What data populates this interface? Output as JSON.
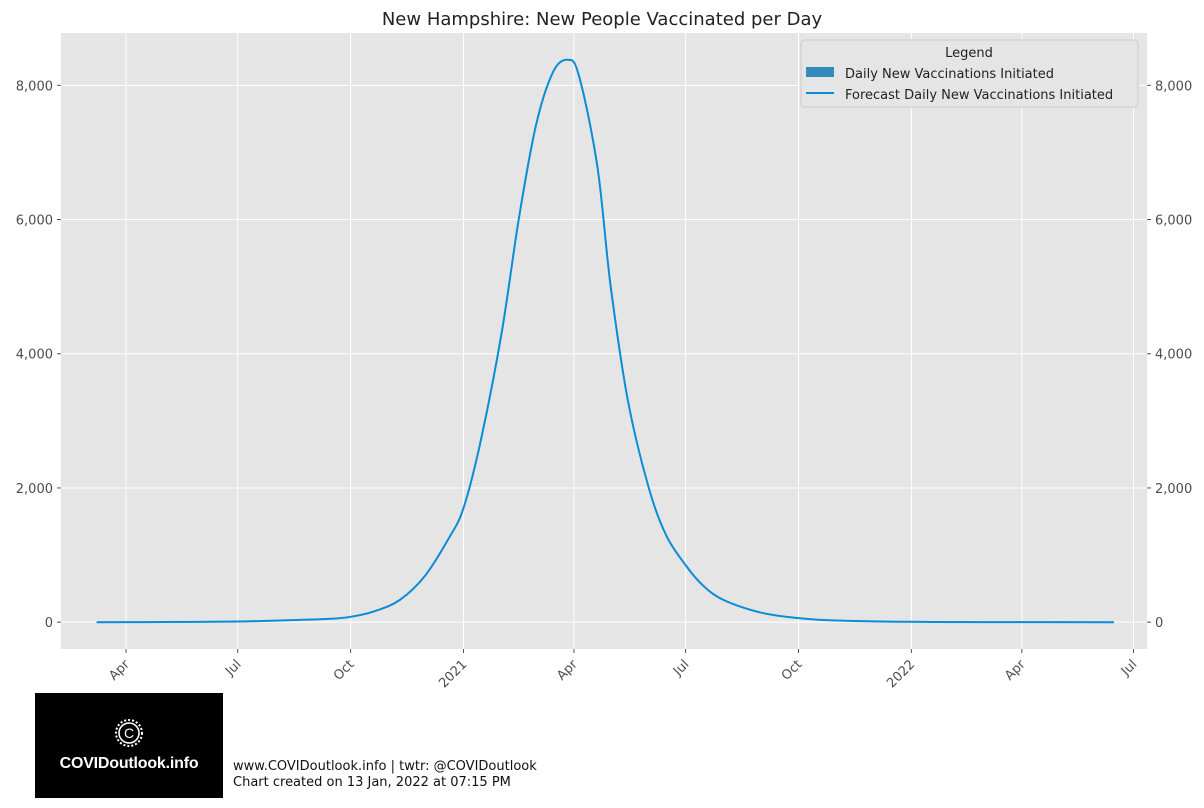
{
  "chart_data": {
    "type": "line",
    "title": "New Hampshire: New People Vaccinated per Day",
    "xlabel": "",
    "ylabel": "",
    "x_ticks": [
      {
        "date": "2020-04-01",
        "label": "Apr"
      },
      {
        "date": "2020-07-01",
        "label": "Jul"
      },
      {
        "date": "2020-10-01",
        "label": "Oct"
      },
      {
        "date": "2021-01-01",
        "label": "2021"
      },
      {
        "date": "2021-04-01",
        "label": "Apr"
      },
      {
        "date": "2021-07-01",
        "label": "Jul"
      },
      {
        "date": "2021-10-01",
        "label": "Oct"
      },
      {
        "date": "2022-01-01",
        "label": "2022"
      },
      {
        "date": "2022-04-01",
        "label": "Apr"
      },
      {
        "date": "2022-07-01",
        "label": "Jul"
      }
    ],
    "y_ticks": [
      0,
      2000,
      4000,
      6000,
      8000
    ],
    "y_tick_labels": [
      "0",
      "2,000",
      "4,000",
      "6,000",
      "8,000"
    ],
    "xlim": [
      "2020-02-08",
      "2022-07-12"
    ],
    "ylim": [
      -400,
      8780
    ],
    "grid": true,
    "legend": {
      "title": "Legend",
      "placement": "top-right",
      "entries": [
        {
          "label": "Daily New Vaccinations Initiated",
          "kind": "bar",
          "color": "#348abd"
        },
        {
          "label": "Forecast Daily New Vaccinations Initiated",
          "kind": "line",
          "color": "#0a8cd6"
        }
      ]
    },
    "series": [
      {
        "name": "Forecast Daily New Vaccinations Initiated",
        "color": "#0a8cd6",
        "points": [
          [
            "2020-03-08",
            0
          ],
          [
            "2020-05-01",
            2
          ],
          [
            "2020-07-01",
            10
          ],
          [
            "2020-08-15",
            30
          ],
          [
            "2020-09-15",
            50
          ],
          [
            "2020-10-01",
            80
          ],
          [
            "2020-10-20",
            160
          ],
          [
            "2020-11-10",
            330
          ],
          [
            "2020-12-01",
            700
          ],
          [
            "2020-12-20",
            1250
          ],
          [
            "2021-01-01",
            1700
          ],
          [
            "2021-01-15",
            2700
          ],
          [
            "2021-02-01",
            4300
          ],
          [
            "2021-02-15",
            6000
          ],
          [
            "2021-03-01",
            7400
          ],
          [
            "2021-03-15",
            8200
          ],
          [
            "2021-03-27",
            8380
          ],
          [
            "2021-04-05",
            8150
          ],
          [
            "2021-04-20",
            6800
          ],
          [
            "2021-05-01",
            5000
          ],
          [
            "2021-05-15",
            3300
          ],
          [
            "2021-06-01",
            2000
          ],
          [
            "2021-06-15",
            1300
          ],
          [
            "2021-07-01",
            850
          ],
          [
            "2021-07-15",
            550
          ],
          [
            "2021-08-01",
            330
          ],
          [
            "2021-09-01",
            140
          ],
          [
            "2021-10-01",
            60
          ],
          [
            "2021-11-01",
            25
          ],
          [
            "2022-01-01",
            5
          ],
          [
            "2022-03-01",
            1
          ],
          [
            "2022-06-15",
            0
          ]
        ]
      }
    ]
  },
  "footer": {
    "line1": "www.COVIDoutlook.info | twtr: @COVIDoutlook",
    "line2": "Chart created on 13 Jan, 2022 at 07:15 PM"
  },
  "logo": {
    "text": "COVIDoutlook.info",
    "icon": "copyright-virus-icon"
  }
}
